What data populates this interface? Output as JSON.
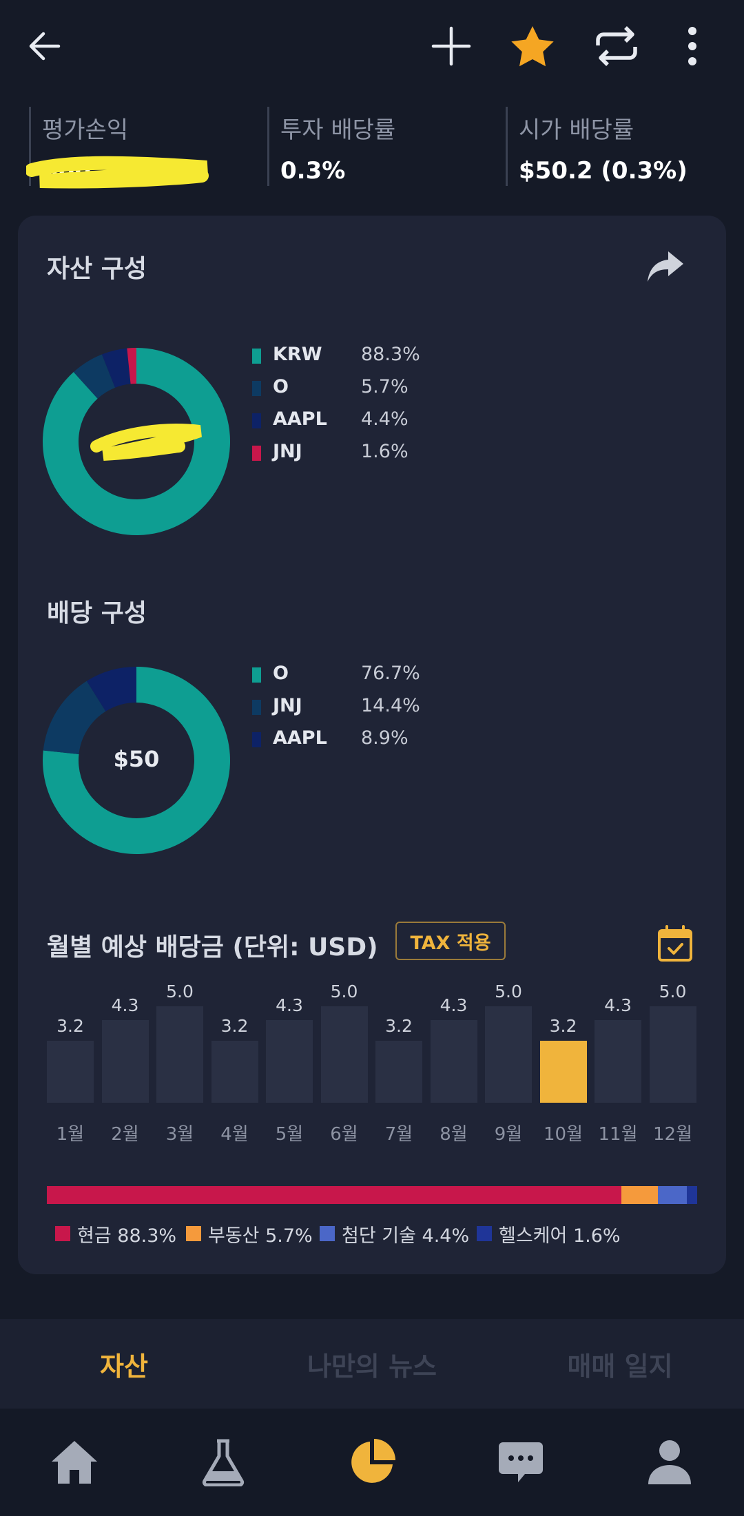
{
  "header": {
    "icons": [
      "back-arrow-icon",
      "plus-icon",
      "star-icon",
      "repeat-icon",
      "more-vertical-icon"
    ],
    "star_color": "#f5a623"
  },
  "stats": [
    {
      "label": "평가손익",
      "value": "$00"
    },
    {
      "label": "투자 배당률",
      "value": "0.3%"
    },
    {
      "label": "시가 배당률",
      "value": "$50.2 (0.3%)"
    }
  ],
  "asset_composition": {
    "title": "자산 구성",
    "items": [
      {
        "name": "KRW",
        "pct_label": "88.3%",
        "value": 88.3,
        "color": "#0e9e92"
      },
      {
        "name": "O",
        "pct_label": "5.7%",
        "value": 5.7,
        "color": "#0d3a62"
      },
      {
        "name": "AAPL",
        "pct_label": "4.4%",
        "value": 4.4,
        "color": "#0d2266"
      },
      {
        "name": "JNJ",
        "pct_label": "1.6%",
        "value": 1.6,
        "color": "#c8174b"
      }
    ]
  },
  "dividend_composition": {
    "title": "배당 구성",
    "center": "$50",
    "items": [
      {
        "name": "O",
        "pct_label": "76.7%",
        "value": 76.7,
        "color": "#0e9e92"
      },
      {
        "name": "JNJ",
        "pct_label": "14.4%",
        "value": 14.4,
        "color": "#0d3a62"
      },
      {
        "name": "AAPL",
        "pct_label": "8.9%",
        "value": 8.9,
        "color": "#0d2266"
      }
    ]
  },
  "monthly": {
    "title": "월별 예상 배당금 (단위: USD)",
    "tax_label": "TAX 적용",
    "highlight_color": "#f0b43c",
    "bar_color": "#2a3044"
  },
  "chart_data": {
    "type": "bar",
    "title": "월별 예상 배당금 (단위: USD)",
    "categories": [
      "1월",
      "2월",
      "3월",
      "4월",
      "5월",
      "6월",
      "7월",
      "8월",
      "9월",
      "10월",
      "11월",
      "12월"
    ],
    "values": [
      3.2,
      4.3,
      5.0,
      3.2,
      4.3,
      5.0,
      3.2,
      4.3,
      5.0,
      3.2,
      4.3,
      5.0
    ],
    "value_labels": [
      "3.2",
      "4.3",
      "5.0",
      "3.2",
      "4.3",
      "5.0",
      "3.2",
      "4.3",
      "5.0",
      "3.2",
      "4.3",
      "5.0"
    ],
    "highlight_index": 9,
    "ylim": [
      0,
      5.0
    ],
    "grid": false
  },
  "sector_breakdown": [
    {
      "name": "현금",
      "pct_label": "88.3%",
      "value": 88.3,
      "color": "#c8174b"
    },
    {
      "name": "부동산",
      "pct_label": "5.7%",
      "value": 5.7,
      "color": "#f59a3c"
    },
    {
      "name": "첨단 기술",
      "pct_label": "4.4%",
      "value": 4.4,
      "color": "#4b67c8"
    },
    {
      "name": "헬스케어",
      "pct_label": "1.6%",
      "value": 1.6,
      "color": "#1f3598"
    }
  ],
  "sub_tabs": [
    {
      "label": "자산",
      "active": true
    },
    {
      "label": "나만의 뉴스",
      "active": false
    },
    {
      "label": "매매 일지",
      "active": false
    }
  ],
  "bottom_nav": [
    "home-icon",
    "flask-icon",
    "pie-chart-icon",
    "chat-icon",
    "profile-icon"
  ],
  "active_nav_color": "#f0b43c"
}
